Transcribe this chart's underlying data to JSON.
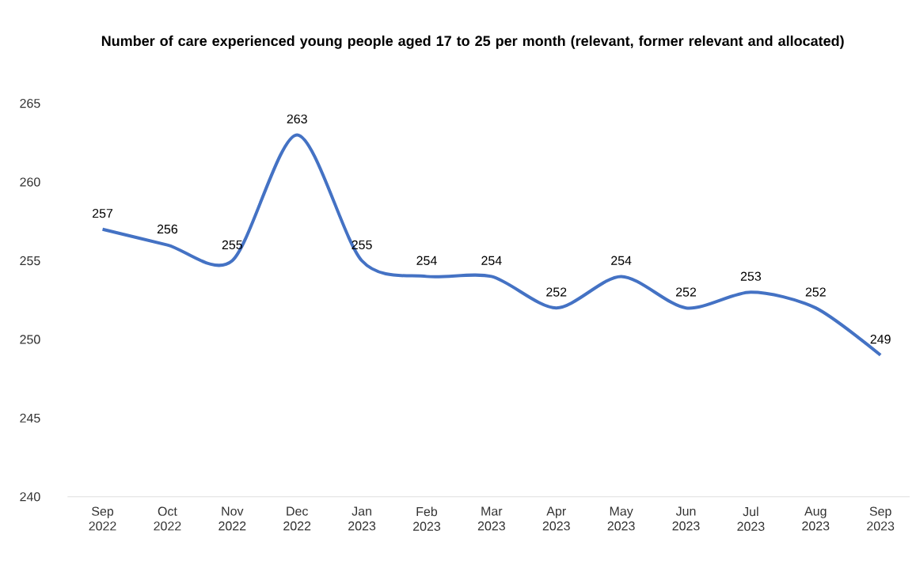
{
  "chart_data": {
    "type": "line",
    "title": "Number of care experienced young people aged 17 to 25 per month (relevant, former relevant and allocated)",
    "categories": [
      "Sep 2022",
      "Oct 2022",
      "Nov 2022",
      "Dec 2022",
      "Jan 2023",
      "Feb 2023",
      "Mar 2023",
      "Apr 2023",
      "May 2023",
      "Jun 2023",
      "Jul 2023",
      "Aug 2023",
      "Sep 2023"
    ],
    "values": [
      257,
      256,
      255,
      263,
      255,
      254,
      254,
      252,
      254,
      252,
      253,
      252,
      249
    ],
    "color": "#4472c4",
    "ylim": [
      240,
      265
    ],
    "yticks": [
      240,
      245,
      250,
      255,
      260,
      265
    ],
    "grid": false,
    "marker": "none",
    "line_style": "solid",
    "data_labels": true
  }
}
